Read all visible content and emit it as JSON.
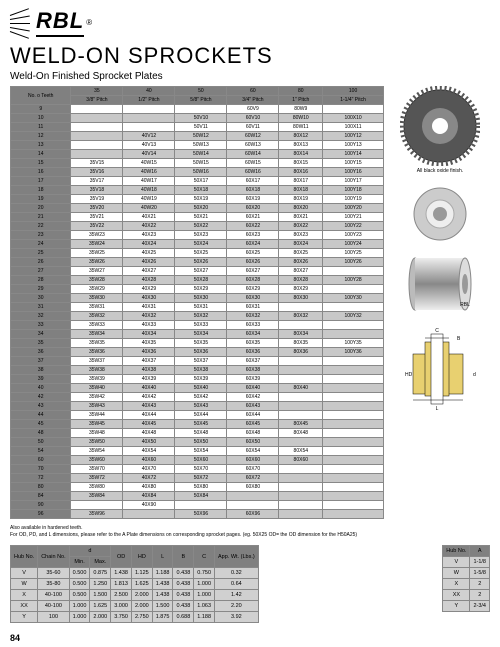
{
  "brand": "RBL",
  "title": "WELD-ON SPROCKETS",
  "subtitle": "Weld-On Finished Sprocket Plates",
  "sprocket_table": {
    "header_label": "No. o Teeth",
    "series": [
      "35",
      "40",
      "50",
      "60",
      "80",
      "100"
    ],
    "pitches": [
      "3/8\" Pitch",
      "1/2\" Pitch",
      "5/8\" Pitch",
      "3/4\" Pitch",
      "1\" Pitch",
      "1-1/4\" Pitch"
    ],
    "rows": [
      {
        "t": "9",
        "c": [
          "",
          "",
          "",
          "60V9",
          "80W9",
          ""
        ]
      },
      {
        "t": "10",
        "c": [
          "",
          "",
          "50V10",
          "60V10",
          "80W10",
          "100X10"
        ]
      },
      {
        "t": "11",
        "c": [
          "",
          "",
          "50V11",
          "60V11",
          "80W11",
          "100X11"
        ]
      },
      {
        "t": "12",
        "c": [
          "",
          "40V12",
          "50W12",
          "60W12",
          "80X12",
          "100Y12"
        ]
      },
      {
        "t": "13",
        "c": [
          "",
          "40V13",
          "50W13",
          "60W13",
          "80X13",
          "100Y13"
        ]
      },
      {
        "t": "14",
        "c": [
          "",
          "40V14",
          "50W14",
          "60W14",
          "80X14",
          "100Y14"
        ]
      },
      {
        "t": "15",
        "c": [
          "35V15",
          "40W15",
          "50W15",
          "60W15",
          "80X15",
          "100Y15"
        ]
      },
      {
        "t": "16",
        "c": [
          "35V16",
          "40W16",
          "50W16",
          "60W16",
          "80X16",
          "100Y16"
        ]
      },
      {
        "t": "17",
        "c": [
          "35V17",
          "40W17",
          "50X17",
          "60X17",
          "80X17",
          "100Y17"
        ]
      },
      {
        "t": "18",
        "c": [
          "35V18",
          "40W18",
          "50X18",
          "60X18",
          "80X18",
          "100Y18"
        ]
      },
      {
        "t": "19",
        "c": [
          "35V19",
          "40W19",
          "50X19",
          "60X19",
          "80X19",
          "100Y19"
        ]
      },
      {
        "t": "20",
        "c": [
          "35V20",
          "40W20",
          "50X20",
          "60X20",
          "80X20",
          "100Y20"
        ]
      },
      {
        "t": "21",
        "c": [
          "35V21",
          "40X21",
          "50X21",
          "60X21",
          "80X21",
          "100Y21"
        ]
      },
      {
        "t": "22",
        "c": [
          "35V22",
          "40X22",
          "50X22",
          "60X22",
          "80X22",
          "100Y22"
        ]
      },
      {
        "t": "23",
        "c": [
          "35W23",
          "40X23",
          "50X23",
          "60X23",
          "80X23",
          "100Y23"
        ]
      },
      {
        "t": "24",
        "c": [
          "35W24",
          "40X24",
          "50X24",
          "60X24",
          "80X24",
          "100Y24"
        ]
      },
      {
        "t": "25",
        "c": [
          "35W25",
          "40X25",
          "50X25",
          "60X25",
          "80X25",
          "100Y25"
        ]
      },
      {
        "t": "26",
        "c": [
          "35W26",
          "40X26",
          "50X26",
          "60X26",
          "80X26",
          "100Y26"
        ]
      },
      {
        "t": "27",
        "c": [
          "35W27",
          "40X27",
          "50X27",
          "60X27",
          "80X27",
          ""
        ]
      },
      {
        "t": "28",
        "c": [
          "35W28",
          "40X28",
          "50X28",
          "60X28",
          "80X28",
          "100Y28"
        ]
      },
      {
        "t": "29",
        "c": [
          "35W29",
          "40X29",
          "50X29",
          "60X29",
          "80X29",
          ""
        ]
      },
      {
        "t": "30",
        "c": [
          "35W30",
          "40X30",
          "50X30",
          "60X30",
          "80X30",
          "100Y30"
        ]
      },
      {
        "t": "31",
        "c": [
          "35W31",
          "40X31",
          "50X31",
          "60X31",
          "",
          ""
        ]
      },
      {
        "t": "32",
        "c": [
          "35W32",
          "40X32",
          "50X32",
          "60X32",
          "80X32",
          "100Y32"
        ]
      },
      {
        "t": "33",
        "c": [
          "35W33",
          "40X33",
          "50X33",
          "60X33",
          "",
          ""
        ]
      },
      {
        "t": "34",
        "c": [
          "35W34",
          "40X34",
          "50X34",
          "60X34",
          "80X34",
          ""
        ]
      },
      {
        "t": "35",
        "c": [
          "35W35",
          "40X35",
          "50X35",
          "60X35",
          "80X35",
          "100Y35"
        ]
      },
      {
        "t": "36",
        "c": [
          "35W36",
          "40X36",
          "50X36",
          "60X36",
          "80X36",
          "100Y36"
        ]
      },
      {
        "t": "37",
        "c": [
          "35W37",
          "40X37",
          "50X37",
          "60X37",
          "",
          ""
        ]
      },
      {
        "t": "38",
        "c": [
          "35W38",
          "40X38",
          "50X38",
          "60X38",
          "",
          ""
        ]
      },
      {
        "t": "39",
        "c": [
          "35W39",
          "40X39",
          "50X39",
          "60X39",
          "",
          ""
        ]
      },
      {
        "t": "40",
        "c": [
          "35W40",
          "40X40",
          "50X40",
          "60X40",
          "80X40",
          ""
        ]
      },
      {
        "t": "42",
        "c": [
          "35W42",
          "40X42",
          "50X42",
          "60X42",
          "",
          ""
        ]
      },
      {
        "t": "43",
        "c": [
          "35W43",
          "40X43",
          "50X43",
          "60X43",
          "",
          ""
        ]
      },
      {
        "t": "44",
        "c": [
          "35W44",
          "40X44",
          "50X44",
          "60X44",
          "",
          ""
        ]
      },
      {
        "t": "45",
        "c": [
          "35W45",
          "40X45",
          "50X45",
          "60X45",
          "80X45",
          ""
        ]
      },
      {
        "t": "48",
        "c": [
          "35W48",
          "40X48",
          "50X48",
          "60X48",
          "80X48",
          ""
        ]
      },
      {
        "t": "50",
        "c": [
          "35W50",
          "40X50",
          "50X50",
          "60X50",
          "",
          ""
        ]
      },
      {
        "t": "54",
        "c": [
          "35W54",
          "40X54",
          "50X54",
          "60X54",
          "80X54",
          ""
        ]
      },
      {
        "t": "60",
        "c": [
          "35W60",
          "40X60",
          "50X60",
          "60X60",
          "80X60",
          ""
        ]
      },
      {
        "t": "70",
        "c": [
          "35W70",
          "40X70",
          "50X70",
          "60X70",
          "",
          ""
        ]
      },
      {
        "t": "72",
        "c": [
          "35W72",
          "40X72",
          "50X72",
          "60X72",
          "",
          ""
        ]
      },
      {
        "t": "80",
        "c": [
          "35W80",
          "40X80",
          "50X80",
          "60X80",
          "",
          ""
        ]
      },
      {
        "t": "84",
        "c": [
          "35W84",
          "40X84",
          "50X84",
          "",
          "",
          ""
        ]
      },
      {
        "t": "90",
        "c": [
          "",
          "40X90",
          "",
          "",
          "",
          ""
        ]
      },
      {
        "t": "96",
        "c": [
          "35W96",
          "",
          "50X96",
          "60X96",
          "",
          ""
        ]
      }
    ]
  },
  "illus_caption": "All black oxide finish.",
  "note_line1": "Also available in hardened teeth.",
  "note_line2": "For OD, PD, and L dimensions, please refer to the A Plate dimensions on corresponding sprocket pages. (eg. 50X25 OD= the OD dimension for the H50A25)",
  "dim_table": {
    "headers": [
      "Hub No.",
      "Chain No.",
      "d_Min.",
      "d_Max.",
      "OD",
      "HD",
      "L",
      "B",
      "C",
      "App. Wt. (Lbs.)"
    ],
    "d_group_label": "d",
    "rows": [
      [
        "V",
        "35-60",
        "0.500",
        "0.875",
        "1.438",
        "1.125",
        "1.188",
        "0.438",
        "0.750",
        "0.32"
      ],
      [
        "W",
        "35-80",
        "0.500",
        "1.250",
        "1.813",
        "1.625",
        "1.438",
        "0.438",
        "1.000",
        "0.64"
      ],
      [
        "X",
        "40-100",
        "0.500",
        "1.500",
        "2.500",
        "2.000",
        "1.438",
        "0.438",
        "1.000",
        "1.42"
      ],
      [
        "XX",
        "40-100",
        "1.000",
        "1.625",
        "3.000",
        "2.000",
        "1.500",
        "0.438",
        "1.063",
        "2.20"
      ],
      [
        "Y",
        "100",
        "1.000",
        "2.000",
        "3.750",
        "2.750",
        "1.875",
        "0.688",
        "1.188",
        "3.92"
      ]
    ]
  },
  "hub_table": {
    "headers": [
      "Hub No.",
      "A"
    ],
    "rows": [
      [
        "V",
        "1-1/8"
      ],
      [
        "W",
        "1-5/8"
      ],
      [
        "X",
        "2"
      ],
      [
        "XX",
        "2"
      ],
      [
        "Y",
        "2-3/4"
      ]
    ]
  },
  "page_number": "84",
  "colors": {
    "header_bg": "#808080",
    "alt_row_bg": "#c8c8c8",
    "border": "#888888"
  }
}
